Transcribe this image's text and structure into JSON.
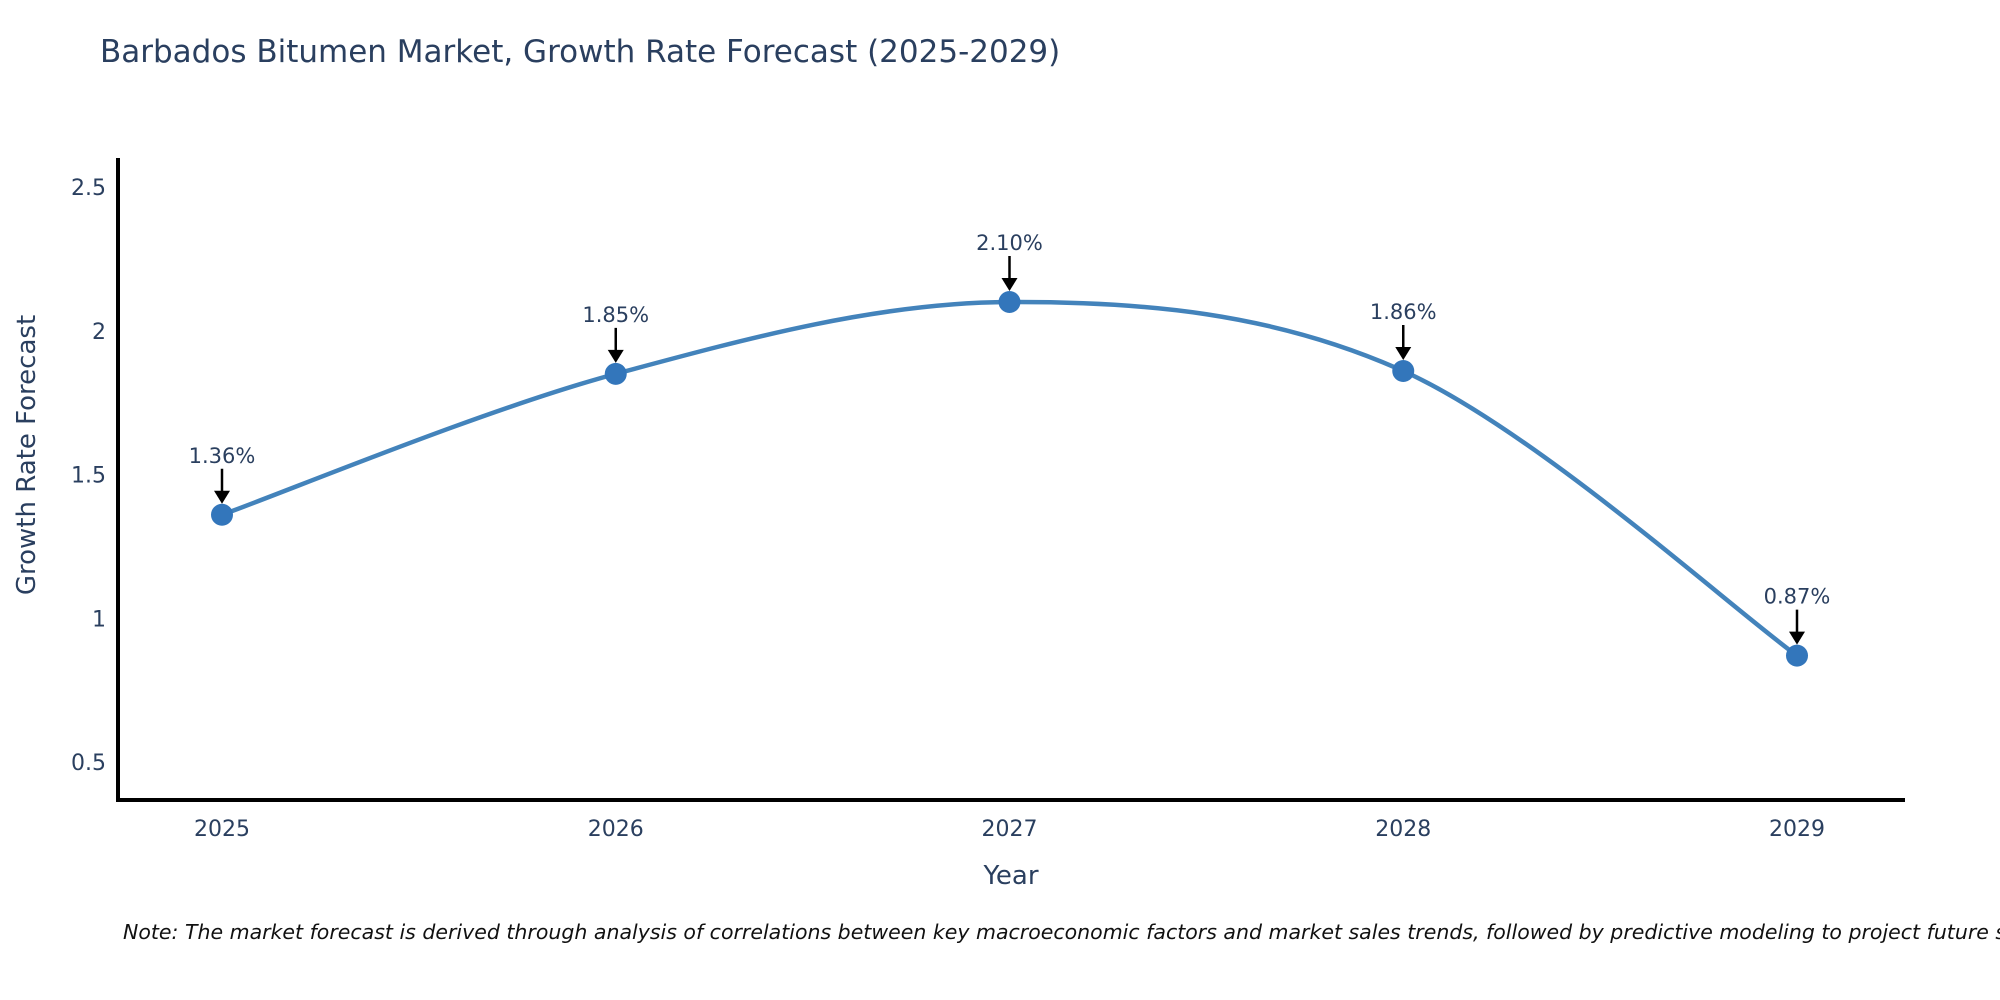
{
  "note": "Note: The market forecast is derived through analysis of correlations between key macroeconomic factors and market sales trends, followed by predictive modeling to project future sales",
  "chart_data": {
    "type": "line",
    "title": "Barbados Bitumen Market, Growth Rate Forecast (2025-2029)",
    "xlabel": "Year",
    "ylabel": "Growth Rate Forecast",
    "categories": [
      "2025",
      "2026",
      "2027",
      "2028",
      "2029"
    ],
    "values": [
      1.36,
      1.85,
      2.1,
      1.86,
      0.87
    ],
    "point_labels": [
      "1.36%",
      "1.85%",
      "2.10%",
      "1.86%",
      "0.87%"
    ],
    "yticks": [
      "0.5",
      "1",
      "1.5",
      "2",
      "2.5"
    ],
    "ytick_values": [
      0.5,
      1,
      1.5,
      2,
      2.5
    ],
    "ylim": [
      0.37,
      2.59
    ],
    "grid": false,
    "legend": "none",
    "line_shape": "spline",
    "line_color": "#4383bb",
    "marker_color": "#3376bb",
    "arrow_color": "#000000",
    "axis_color": "#000000",
    "label_color": "#2a3f5f"
  }
}
